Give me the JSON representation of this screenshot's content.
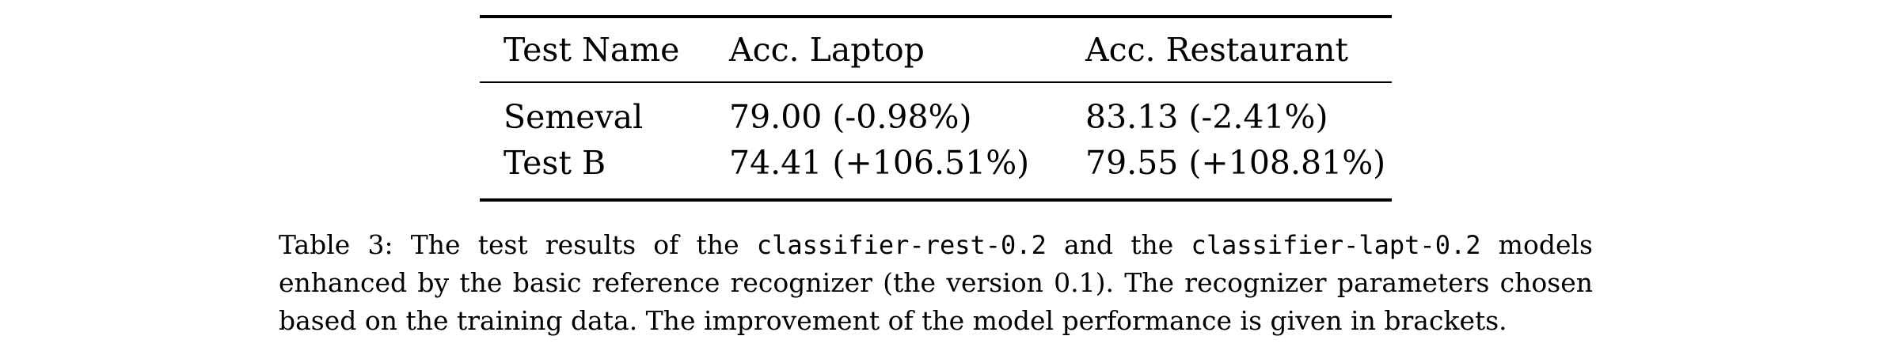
{
  "table": {
    "headers": [
      "Test Name",
      "Acc. Laptop",
      "Acc. Restaurant"
    ],
    "rows": [
      [
        "Semeval",
        "79.00 (-0.98%)",
        "83.13 (-2.41%)"
      ],
      [
        "Test B",
        "74.41 (+106.51%)",
        "79.55 (+108.81%)"
      ]
    ]
  },
  "caption": {
    "part1": "Table 3: The test results of the",
    "code1": "classifier-rest-0.2",
    "part2": "and the",
    "code2": "classifier-lapt-0.2",
    "part3": "models enhanced by the basic reference recognizer (the version 0.1). The recognizer parameters chosen based on the training data. The improvement of the model performance is given in brackets."
  }
}
